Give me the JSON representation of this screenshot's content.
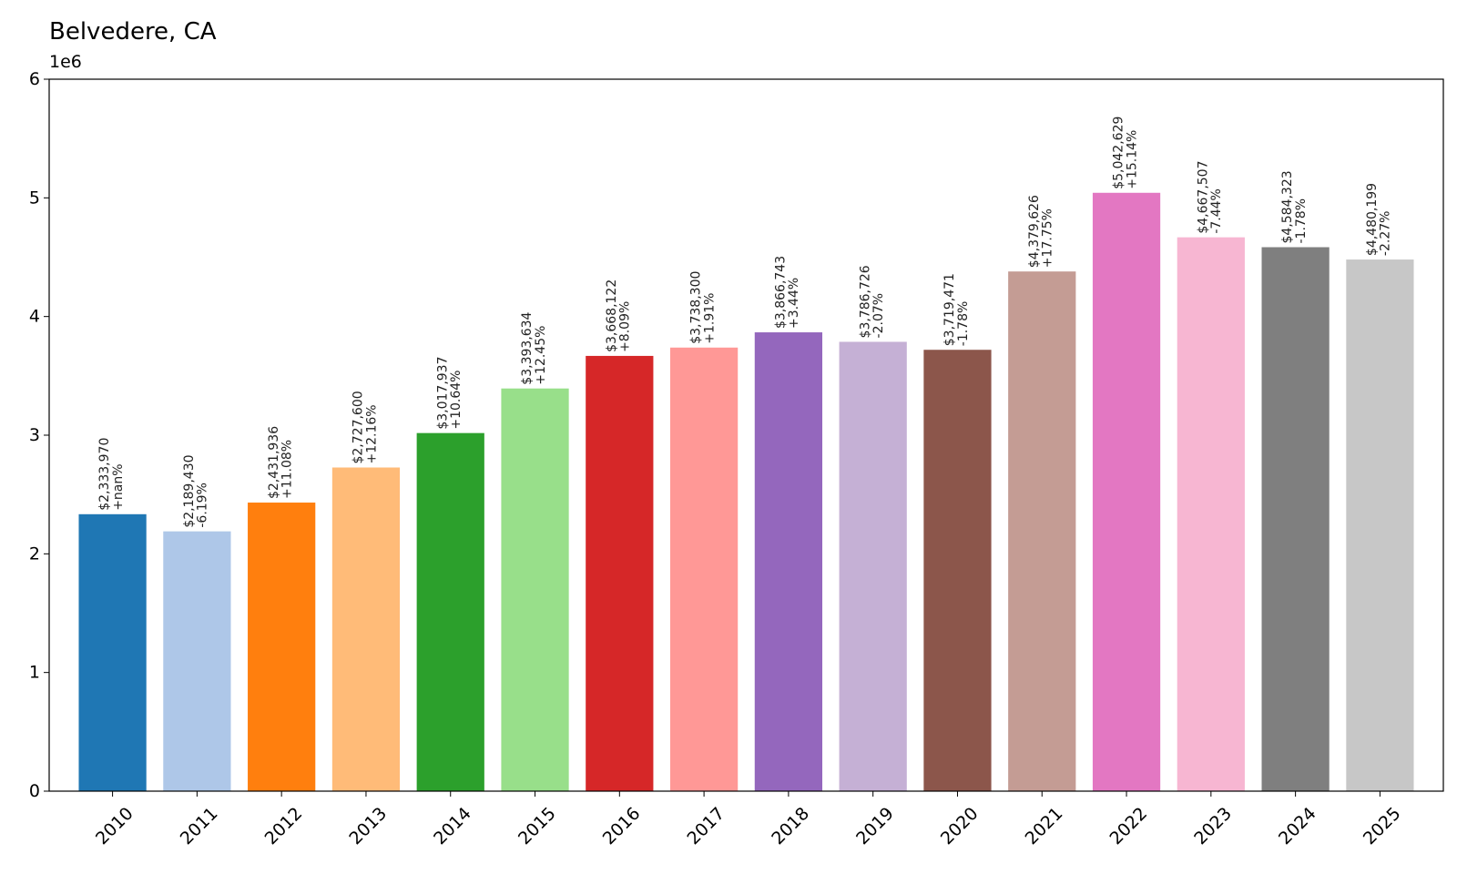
{
  "chart_data": {
    "type": "bar",
    "title": "Belvedere, CA",
    "y_offset_label": "1e6",
    "xlabel": "",
    "ylabel": "",
    "ylim": [
      0,
      6000000
    ],
    "yticks": [
      "0",
      "1",
      "2",
      "3",
      "4",
      "5",
      "6"
    ],
    "grid": false,
    "categories": [
      "2010",
      "2011",
      "2012",
      "2013",
      "2014",
      "2015",
      "2016",
      "2017",
      "2018",
      "2019",
      "2020",
      "2021",
      "2022",
      "2023",
      "2024",
      "2025"
    ],
    "values": [
      2333970,
      2189430,
      2431936,
      2727600,
      3017937,
      3393634,
      3668122,
      3738300,
      3866743,
      3786726,
      3719471,
      4379626,
      5042629,
      4667507,
      4584323,
      4480199
    ],
    "price_labels": [
      "$2,333,970",
      "$2,189,430",
      "$2,431,936",
      "$2,727,600",
      "$3,017,937",
      "$3,393,634",
      "$3,668,122",
      "$3,738,300",
      "$3,866,743",
      "$3,786,726",
      "$3,719,471",
      "$4,379,626",
      "$5,042,629",
      "$4,667,507",
      "$4,584,323",
      "$4,480,199"
    ],
    "change_labels": [
      "+nan%",
      "-6.19%",
      "+11.08%",
      "+12.16%",
      "+10.64%",
      "+12.45%",
      "+8.09%",
      "+1.91%",
      "+3.44%",
      "-2.07%",
      "-1.78%",
      "+17.75%",
      "+15.14%",
      "-7.44%",
      "-1.78%",
      "-2.27%"
    ],
    "colors": [
      "#1f77b4",
      "#aec7e8",
      "#ff7f0e",
      "#ffbb78",
      "#2ca02c",
      "#98df8a",
      "#d62728",
      "#ff9896",
      "#9467bd",
      "#c5b0d5",
      "#8c564b",
      "#c49c94",
      "#e377c2",
      "#f7b6d2",
      "#7f7f7f",
      "#c7c7c7"
    ]
  }
}
